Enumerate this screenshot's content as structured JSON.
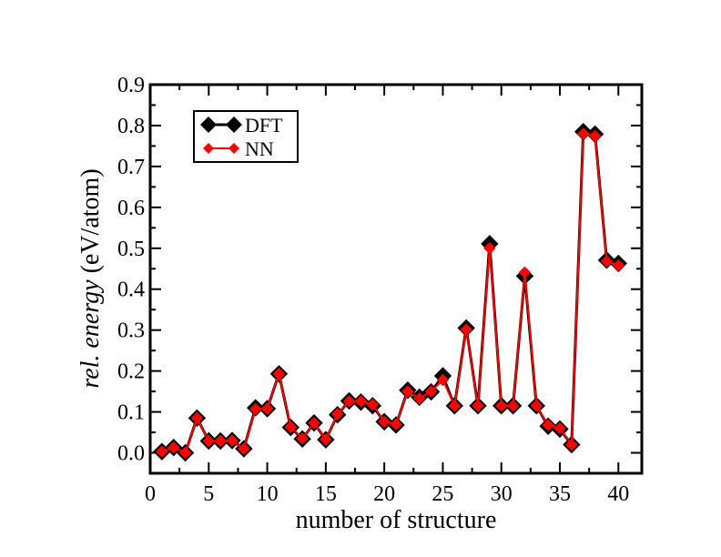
{
  "chart_data": {
    "type": "line",
    "xlabel": "number of structure",
    "ylabel_italic": "rel. energy",
    "ylabel_unit": " (eV/atom)",
    "xlim": [
      0,
      42
    ],
    "ylim": [
      -0.05,
      0.9
    ],
    "xticks": [
      0,
      5,
      10,
      15,
      20,
      25,
      30,
      35,
      40
    ],
    "xtick_labels": [
      "0",
      "5",
      "10",
      "15",
      "20",
      "25",
      "30",
      "35",
      "40"
    ],
    "yticks": [
      0.0,
      0.1,
      0.2,
      0.3,
      0.4,
      0.5,
      0.6,
      0.7,
      0.8,
      0.9
    ],
    "ytick_labels": [
      "0.0",
      "0.1",
      "0.2",
      "0.3",
      "0.4",
      "0.5",
      "0.6",
      "0.7",
      "0.8",
      "0.9"
    ],
    "legend_position": "top-left",
    "grid": false,
    "x": [
      1,
      2,
      3,
      4,
      5,
      6,
      7,
      8,
      9,
      10,
      11,
      12,
      13,
      14,
      15,
      16,
      17,
      18,
      19,
      20,
      21,
      22,
      23,
      24,
      25,
      26,
      27,
      28,
      29,
      30,
      31,
      32,
      33,
      34,
      35,
      36,
      37,
      38,
      39,
      40
    ],
    "series": [
      {
        "name": "DFT",
        "color": "#000000",
        "marker": "diamond-large",
        "values": [
          0.003,
          0.013,
          0.0,
          0.085,
          0.029,
          0.029,
          0.03,
          0.01,
          0.11,
          0.108,
          0.193,
          0.062,
          0.034,
          0.073,
          0.032,
          0.093,
          0.127,
          0.124,
          0.115,
          0.076,
          0.068,
          0.153,
          0.136,
          0.149,
          0.188,
          0.115,
          0.305,
          0.115,
          0.511,
          0.115,
          0.115,
          0.432,
          0.115,
          0.065,
          0.058,
          0.02,
          0.785,
          0.779,
          0.471,
          0.463
        ]
      },
      {
        "name": "NN",
        "color": "#ff0000",
        "marker": "diamond-small",
        "values": [
          0.003,
          0.013,
          0.0,
          0.085,
          0.029,
          0.029,
          0.03,
          0.01,
          0.107,
          0.108,
          0.193,
          0.063,
          0.035,
          0.073,
          0.033,
          0.095,
          0.126,
          0.126,
          0.118,
          0.076,
          0.07,
          0.15,
          0.133,
          0.15,
          0.178,
          0.115,
          0.301,
          0.115,
          0.5,
          0.115,
          0.115,
          0.441,
          0.115,
          0.068,
          0.06,
          0.02,
          0.78,
          0.774,
          0.468,
          0.458
        ]
      }
    ]
  }
}
